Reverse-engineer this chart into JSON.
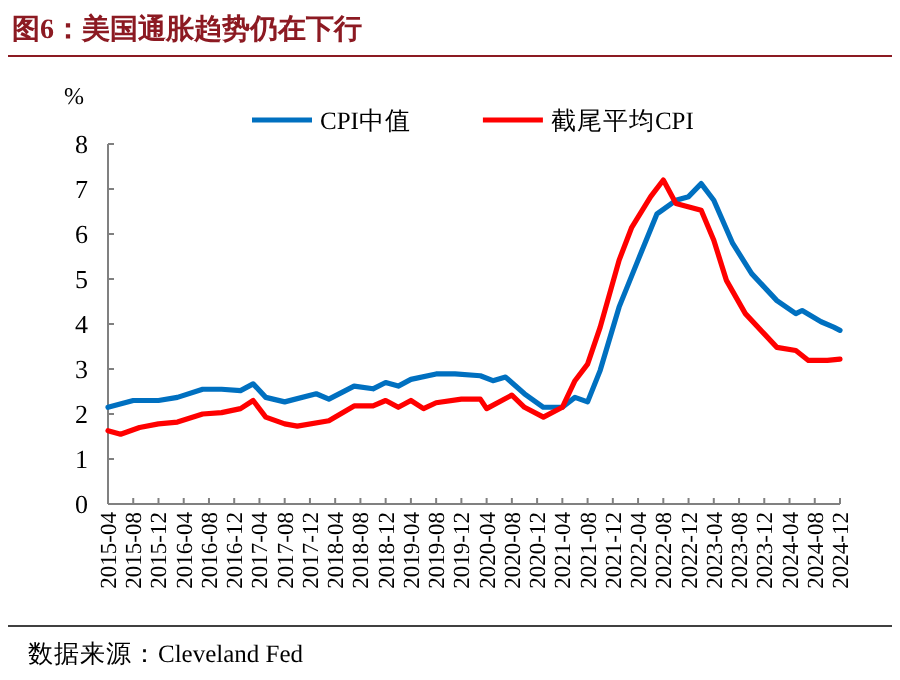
{
  "chart_data": {
    "type": "line",
    "title": "图6：美国通胀趋势仍在下行",
    "ylabel": "%",
    "annotations": [
      "数据来源：Cleveland Fed"
    ],
    "xlim": [
      "2015-04",
      "2024-12"
    ],
    "xticks": [
      "2015-04",
      "2015-08",
      "2015-12",
      "2016-04",
      "2016-08",
      "2016-12",
      "2017-04",
      "2017-08",
      "2017-12",
      "2018-04",
      "2018-08",
      "2018-12",
      "2019-04",
      "2019-08",
      "2019-12",
      "2020-04",
      "2020-08",
      "2020-12",
      "2021-04",
      "2021-08",
      "2021-12",
      "2022-04",
      "2022-08",
      "2022-12",
      "2023-04",
      "2023-08",
      "2023-12",
      "2024-04",
      "2024-08",
      "2024-12"
    ],
    "ylim": [
      0,
      8
    ],
    "yticks": [
      0,
      1,
      2,
      3,
      4,
      5,
      6,
      7,
      8
    ],
    "grid": false,
    "legend": "top",
    "marker": "none",
    "line_style": "solid",
    "series": [
      {
        "name": "CPI中值",
        "color": "#0070c0",
        "x": [
          "2015-04",
          "2015-08",
          "2015-12",
          "2016-03",
          "2016-07",
          "2016-10",
          "2017-01",
          "2017-03",
          "2017-05",
          "2017-08",
          "2018-01",
          "2018-03",
          "2018-07",
          "2018-10",
          "2018-12",
          "2019-02",
          "2019-04",
          "2019-08",
          "2019-11",
          "2020-03",
          "2020-05",
          "2020-07",
          "2020-10",
          "2021-01",
          "2021-04",
          "2021-06",
          "2021-08",
          "2021-10",
          "2022-01",
          "2022-04",
          "2022-07",
          "2022-10",
          "2022-12",
          "2023-02",
          "2023-04",
          "2023-07",
          "2023-10",
          "2023-12",
          "2024-02",
          "2024-05",
          "2024-06",
          "2024-09",
          "2024-11",
          "2024-12"
        ],
        "values": [
          2.15,
          2.3,
          2.3,
          2.37,
          2.55,
          2.55,
          2.52,
          2.67,
          2.37,
          2.27,
          2.45,
          2.33,
          2.62,
          2.56,
          2.7,
          2.62,
          2.77,
          2.89,
          2.89,
          2.85,
          2.74,
          2.82,
          2.45,
          2.15,
          2.15,
          2.37,
          2.27,
          2.97,
          4.38,
          5.42,
          6.45,
          6.75,
          6.83,
          7.12,
          6.75,
          5.79,
          5.12,
          4.82,
          4.52,
          4.23,
          4.3,
          4.05,
          3.93,
          3.86
        ]
      },
      {
        "name": "截尾平均CPI",
        "color": "#ff0000",
        "x": [
          "2015-04",
          "2015-06",
          "2015-09",
          "2015-12",
          "2016-03",
          "2016-07",
          "2016-10",
          "2017-01",
          "2017-03",
          "2017-05",
          "2017-08",
          "2017-10",
          "2018-03",
          "2018-07",
          "2018-10",
          "2018-12",
          "2019-02",
          "2019-04",
          "2019-06",
          "2019-08",
          "2019-12",
          "2020-03",
          "2020-04",
          "2020-08",
          "2020-10",
          "2021-01",
          "2021-04",
          "2021-06",
          "2021-08",
          "2021-10",
          "2022-01",
          "2022-03",
          "2022-06",
          "2022-08",
          "2022-10",
          "2023-02",
          "2023-04",
          "2023-06",
          "2023-09",
          "2023-12",
          "2024-02",
          "2024-05",
          "2024-07",
          "2024-10",
          "2024-12"
        ],
        "values": [
          1.63,
          1.55,
          1.7,
          1.78,
          1.82,
          2.0,
          2.03,
          2.12,
          2.3,
          1.93,
          1.78,
          1.73,
          1.85,
          2.18,
          2.18,
          2.3,
          2.15,
          2.3,
          2.12,
          2.25,
          2.33,
          2.33,
          2.12,
          2.42,
          2.15,
          1.93,
          2.15,
          2.74,
          3.11,
          3.93,
          5.42,
          6.15,
          6.83,
          7.2,
          6.68,
          6.53,
          5.86,
          4.97,
          4.23,
          3.78,
          3.48,
          3.41,
          3.19,
          3.19,
          3.22
        ]
      }
    ]
  }
}
